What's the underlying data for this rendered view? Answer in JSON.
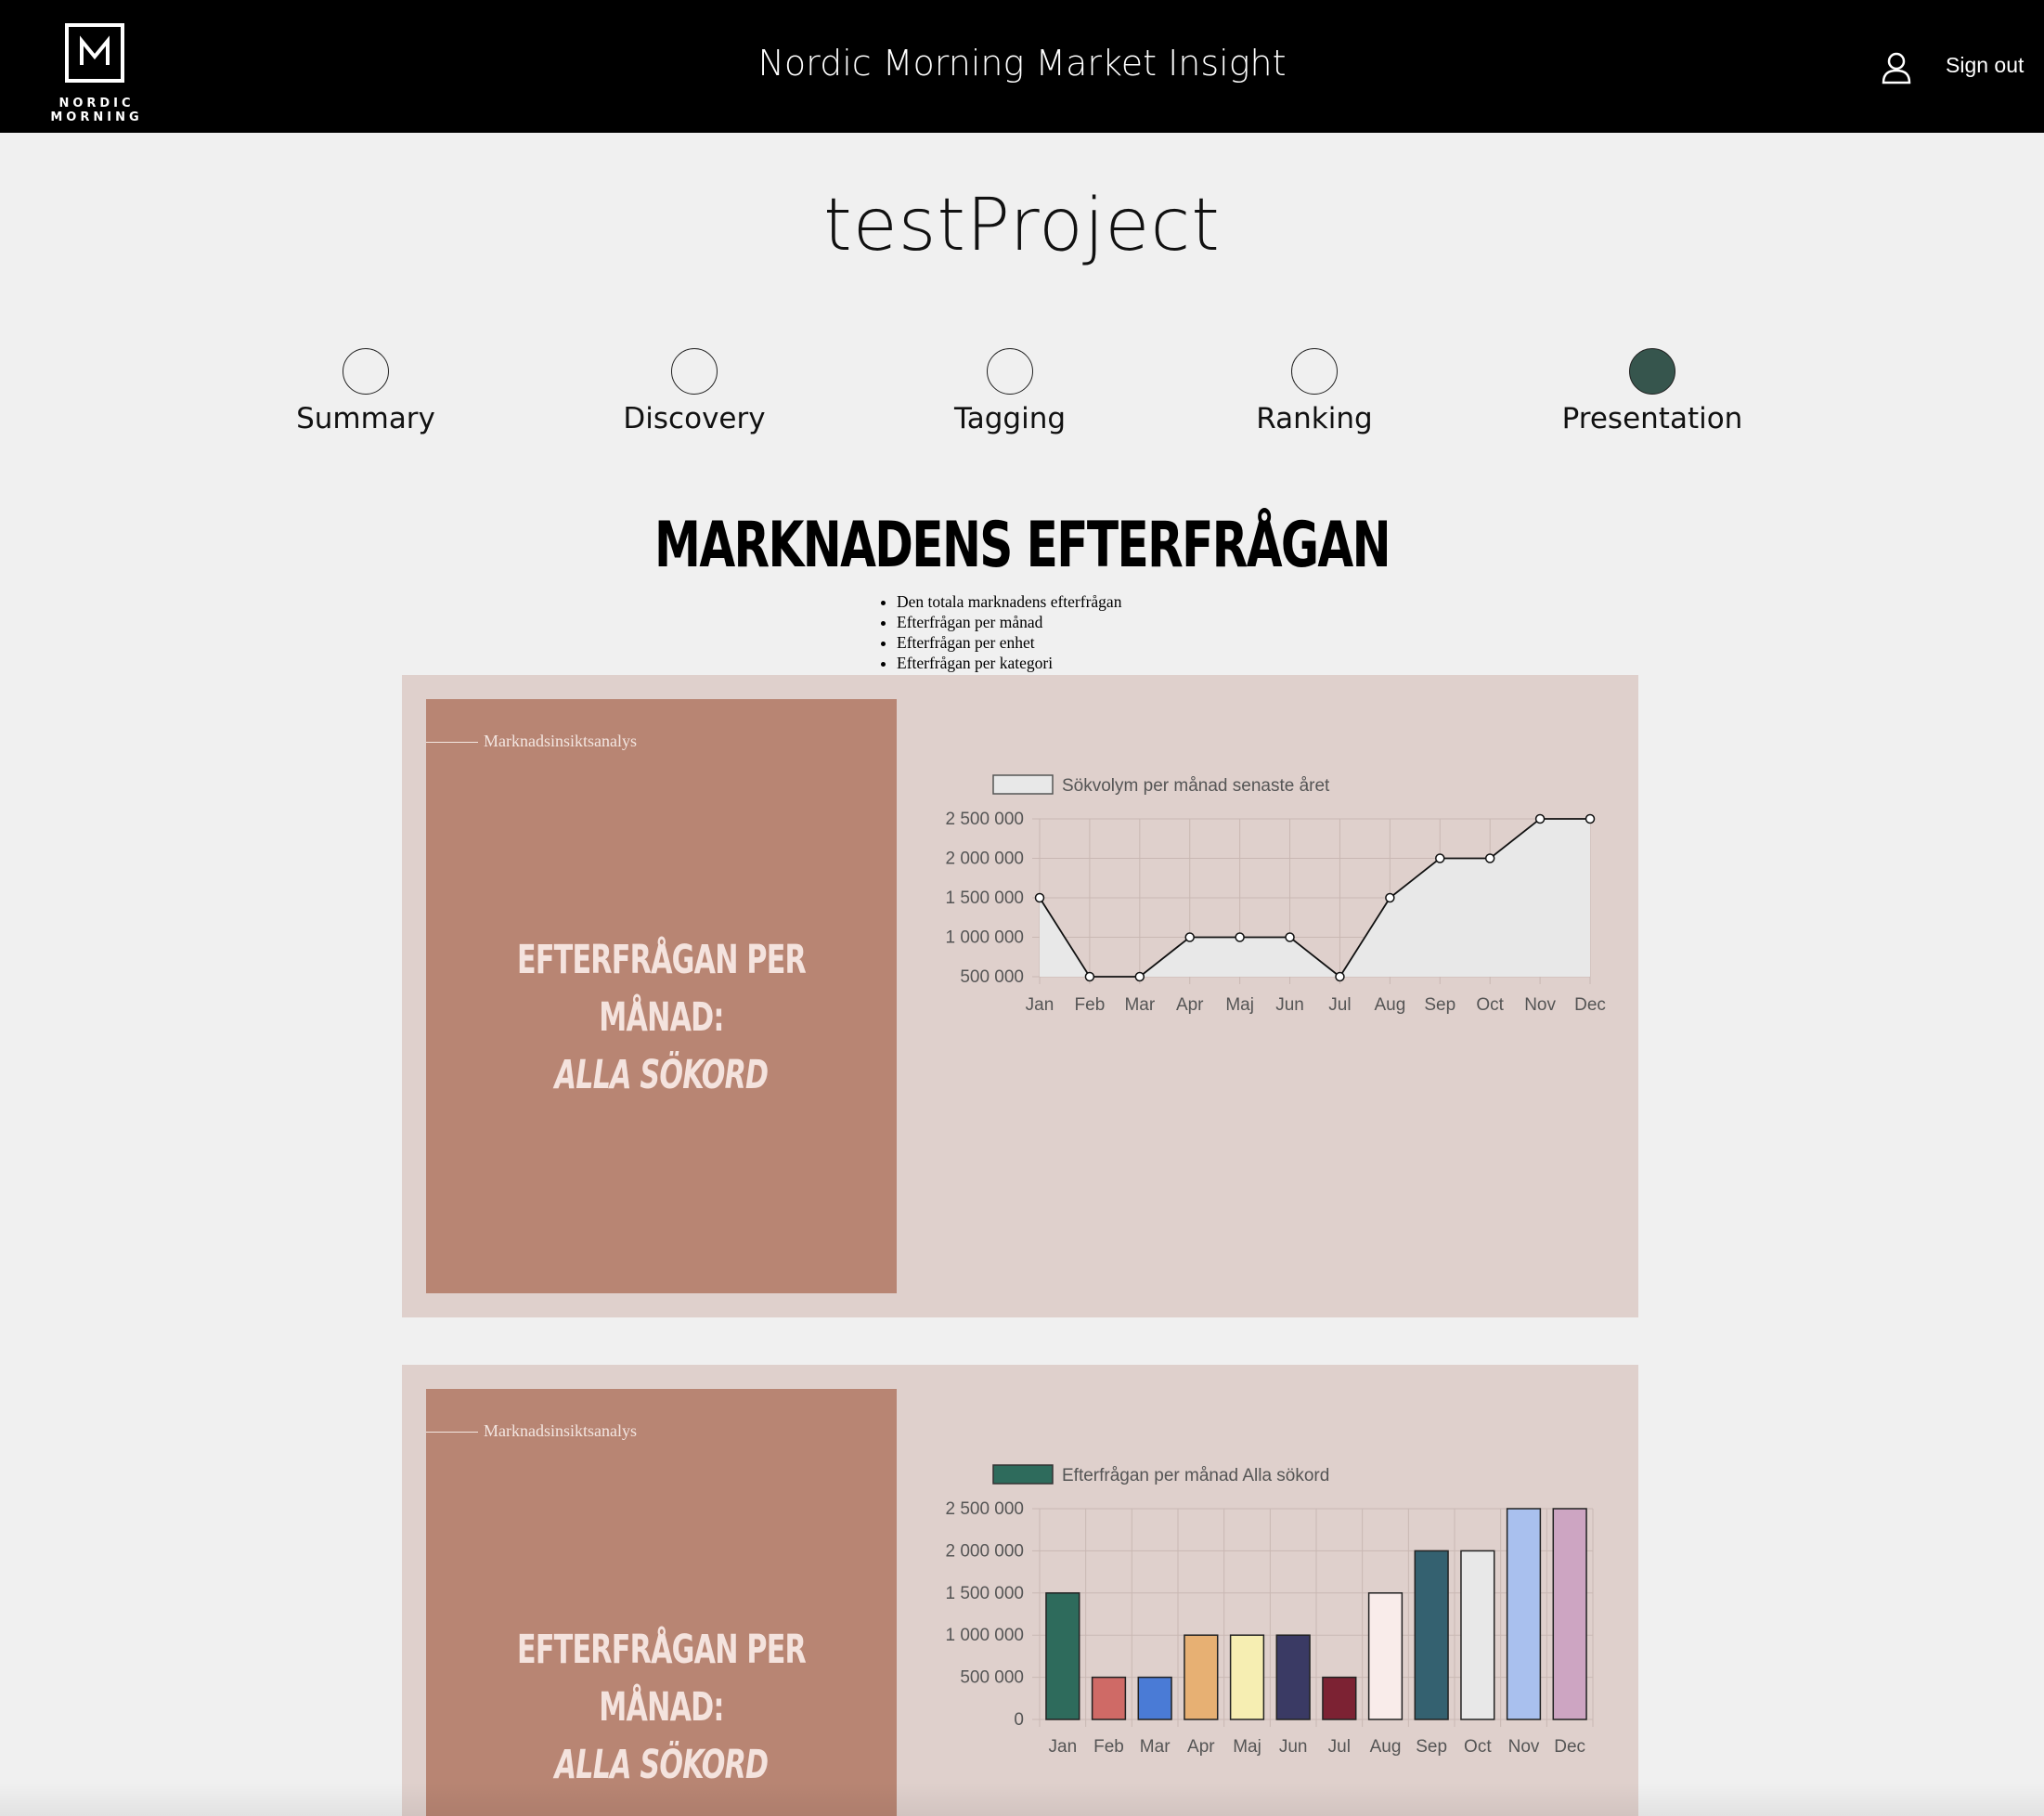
{
  "header": {
    "logo_text": "NORDIC MORNING",
    "app_title": "Nordic Morning Market Insight",
    "signout_label": "Sign out"
  },
  "project": {
    "title": "testProject"
  },
  "steps": [
    {
      "label": "Summary",
      "active": false
    },
    {
      "label": "Discovery",
      "active": false
    },
    {
      "label": "Tagging",
      "active": false
    },
    {
      "label": "Ranking",
      "active": false
    },
    {
      "label": "Presentation",
      "active": true
    }
  ],
  "section": {
    "title": "MARKNADENS EFTERFRÅGAN",
    "bullets": [
      "Den totala marknadens efterfrågan",
      "Efterfrågan per månad",
      "Efterfrågan per enhet",
      "Efterfrågan per kategori"
    ]
  },
  "cards": [
    {
      "eyebrow": "Marknadsinsiktsanalys",
      "headline": "EFTERFRÅGAN PER MÅNAD:",
      "subheadline": "ALLA SÖKORD"
    },
    {
      "eyebrow": "Marknadsinsiktsanalys",
      "headline": "EFTERFRÅGAN PER MÅNAD:",
      "subheadline": "ALLA SÖKORD"
    }
  ],
  "colors": {
    "header_bg": "#000000",
    "page_bg": "#f0f0f0",
    "card_bg": "#dfd0cc",
    "card_side_bg": "#b88573",
    "active_step": "#36554d"
  },
  "chart_data": [
    {
      "type": "line",
      "legend": "Sökvolym per månad senaste året",
      "categories": [
        "Jan",
        "Feb",
        "Mar",
        "Apr",
        "Maj",
        "Jun",
        "Jul",
        "Aug",
        "Sep",
        "Oct",
        "Nov",
        "Dec"
      ],
      "series": [
        {
          "name": "Sökvolym per månad senaste året",
          "values": [
            1500000,
            500000,
            500000,
            1000000,
            1000000,
            1000000,
            500000,
            1500000,
            2000000,
            2000000,
            2500000,
            2500000
          ]
        }
      ],
      "yticks": [
        "500 000",
        "1 000 000",
        "1 500 000",
        "2 000 000",
        "2 500 000"
      ],
      "ylim": [
        500000,
        2500000
      ],
      "fill": "#e8e8e8",
      "grid": true,
      "legend_position": "top"
    },
    {
      "type": "bar",
      "legend": "Efterfrågan per månad Alla sökord",
      "categories": [
        "Jan",
        "Feb",
        "Mar",
        "Apr",
        "Maj",
        "Jun",
        "Jul",
        "Aug",
        "Sep",
        "Oct",
        "Nov",
        "Dec"
      ],
      "series": [
        {
          "name": "Efterfrågan per månad Alla sökord",
          "values": [
            1500000,
            500000,
            500000,
            1000000,
            1000000,
            1000000,
            500000,
            1500000,
            2000000,
            2000000,
            2500000,
            2500000
          ]
        }
      ],
      "bar_colors": [
        "#2e6b5c",
        "#cf6a66",
        "#4a7bd6",
        "#e7b073",
        "#f6eeb2",
        "#3a3a64",
        "#7c2233",
        "#f9ecea",
        "#346170",
        "#e8e8e8",
        "#a9c0ee",
        "#cda5c2"
      ],
      "yticks": [
        "0",
        "500 000",
        "1 000 000",
        "1 500 000",
        "2 000 000",
        "2 500 000"
      ],
      "ylim": [
        0,
        2500000
      ],
      "legend_color": "#2e6b5c",
      "grid": true,
      "legend_position": "top"
    }
  ]
}
